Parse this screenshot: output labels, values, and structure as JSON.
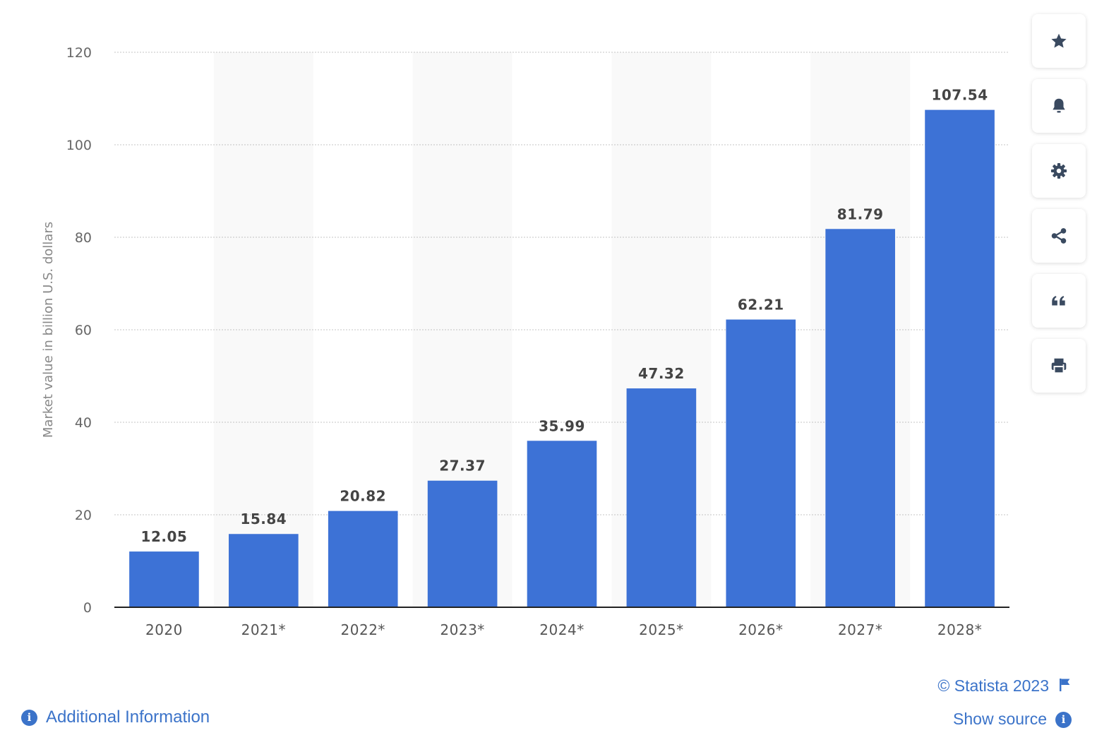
{
  "chart_data": {
    "type": "bar",
    "categories": [
      "2020",
      "2021*",
      "2022*",
      "2023*",
      "2024*",
      "2025*",
      "2026*",
      "2027*",
      "2028*"
    ],
    "values": [
      12.05,
      15.84,
      20.82,
      27.37,
      35.99,
      47.32,
      62.21,
      81.79,
      107.54
    ],
    "value_labels": [
      "12.05",
      "15.84",
      "20.82",
      "27.37",
      "35.99",
      "47.32",
      "62.21",
      "81.79",
      "107.54"
    ],
    "ylabel": "Market value in billion U.S. dollars",
    "ylim": [
      0,
      120
    ],
    "yticks": [
      "0",
      "20",
      "40",
      "60",
      "80",
      "100",
      "120"
    ],
    "grid": true,
    "bar_color": "#3d72d6",
    "alt_band_color": "#f9f9f9"
  },
  "toolbar": {
    "buttons": [
      {
        "icon": "star-icon"
      },
      {
        "icon": "bell-icon"
      },
      {
        "icon": "gear-icon"
      },
      {
        "icon": "share-icon"
      },
      {
        "icon": "quote-icon"
      },
      {
        "icon": "print-icon"
      }
    ]
  },
  "footer": {
    "copyright": "© Statista 2023",
    "show_source": "Show source",
    "additional_info": "Additional Information",
    "link_color": "#3b73c9"
  }
}
